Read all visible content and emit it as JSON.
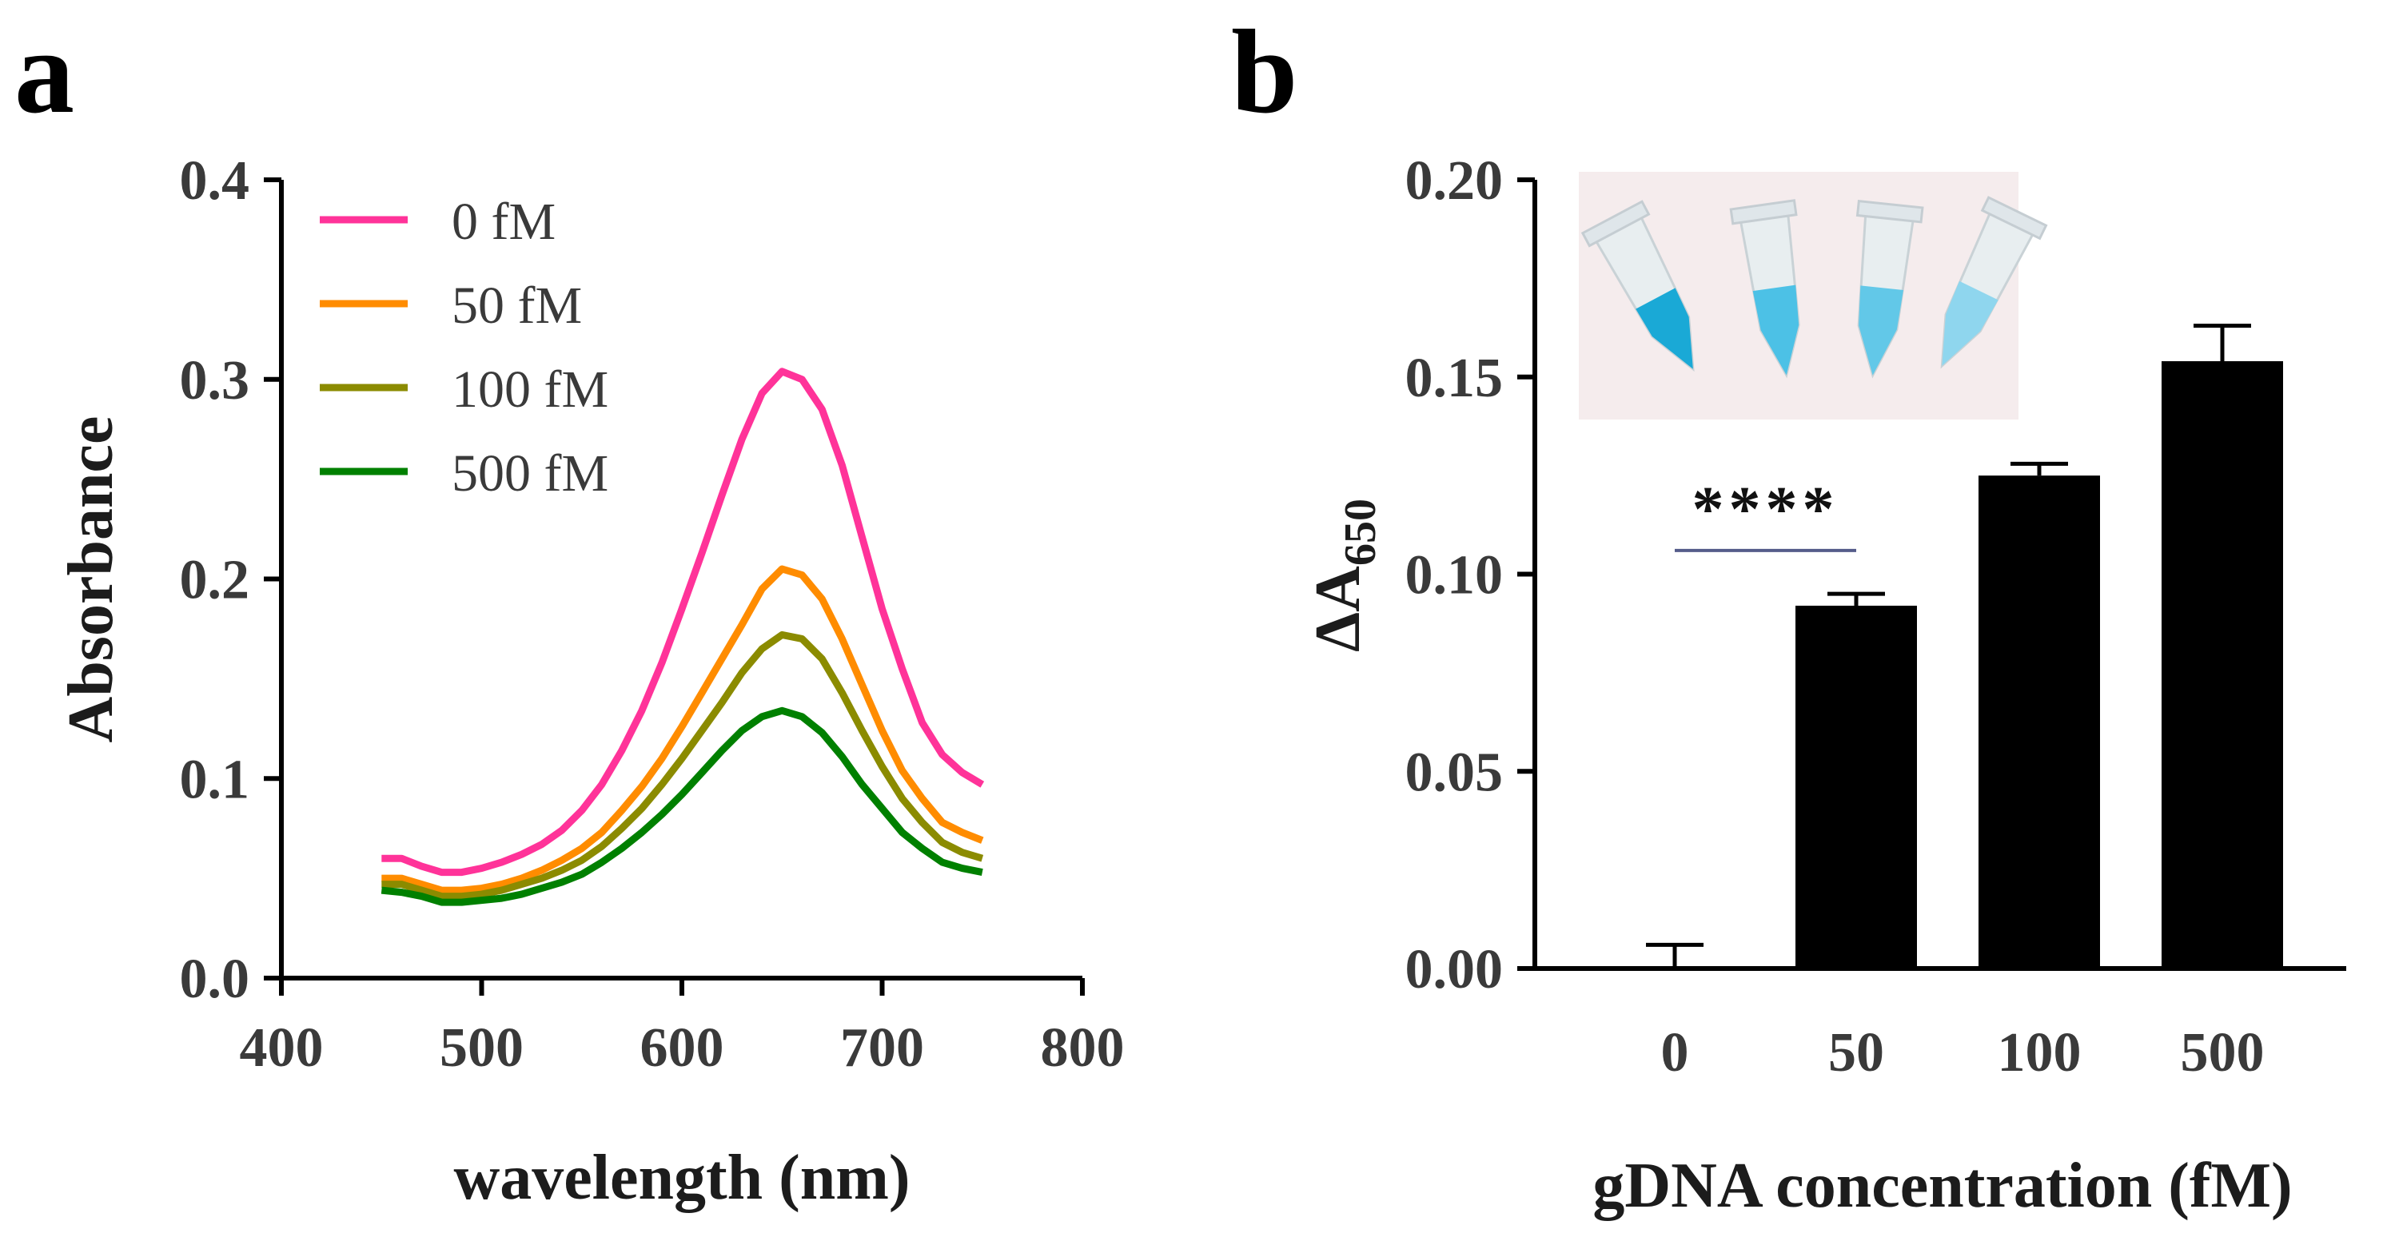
{
  "figure": {
    "panel_a_letter": "a",
    "panel_b_letter": "b"
  },
  "chart_data": [
    {
      "type": "line",
      "panel": "a",
      "xlabel": "wavelength (nm)",
      "ylabel": "Absorbance",
      "xlim": [
        400,
        800
      ],
      "ylim": [
        0.0,
        0.4
      ],
      "xticks": [
        400,
        500,
        600,
        700,
        800
      ],
      "yticks": [
        0.0,
        0.1,
        0.2,
        0.3,
        0.4
      ],
      "xtick_labels": [
        "400",
        "500",
        "600",
        "700",
        "800"
      ],
      "ytick_labels": [
        "0.0",
        "0.1",
        "0.2",
        "0.3",
        "0.4"
      ],
      "grid": false,
      "legend": "top-left",
      "x": [
        450,
        460,
        470,
        480,
        490,
        500,
        510,
        520,
        530,
        540,
        550,
        560,
        570,
        580,
        590,
        600,
        610,
        620,
        630,
        640,
        650,
        660,
        670,
        680,
        690,
        700,
        710,
        720,
        730,
        740,
        750
      ],
      "series": [
        {
          "name": "0 fM",
          "color": "#ff3399",
          "values": [
            0.06,
            0.06,
            0.056,
            0.053,
            0.053,
            0.055,
            0.058,
            0.062,
            0.067,
            0.074,
            0.084,
            0.097,
            0.114,
            0.134,
            0.158,
            0.185,
            0.213,
            0.242,
            0.27,
            0.293,
            0.304,
            0.3,
            0.285,
            0.257,
            0.221,
            0.185,
            0.155,
            0.128,
            0.112,
            0.103,
            0.097
          ]
        },
        {
          "name": "50 fM",
          "color": "#ff8c00",
          "values": [
            0.05,
            0.05,
            0.047,
            0.044,
            0.044,
            0.045,
            0.047,
            0.05,
            0.054,
            0.059,
            0.065,
            0.073,
            0.084,
            0.096,
            0.11,
            0.126,
            0.143,
            0.16,
            0.177,
            0.195,
            0.205,
            0.202,
            0.19,
            0.17,
            0.147,
            0.124,
            0.104,
            0.09,
            0.078,
            0.073,
            0.069
          ]
        },
        {
          "name": "100 fM",
          "color": "#8b8b00",
          "values": [
            0.047,
            0.047,
            0.044,
            0.041,
            0.041,
            0.042,
            0.044,
            0.047,
            0.05,
            0.054,
            0.059,
            0.066,
            0.075,
            0.085,
            0.097,
            0.11,
            0.124,
            0.138,
            0.153,
            0.165,
            0.172,
            0.17,
            0.16,
            0.143,
            0.124,
            0.106,
            0.09,
            0.078,
            0.068,
            0.063,
            0.06
          ]
        },
        {
          "name": "500 fM",
          "color": "#008000",
          "values": [
            0.044,
            0.043,
            0.041,
            0.038,
            0.038,
            0.039,
            0.04,
            0.042,
            0.045,
            0.048,
            0.052,
            0.058,
            0.065,
            0.073,
            0.082,
            0.092,
            0.103,
            0.114,
            0.124,
            0.131,
            0.134,
            0.131,
            0.123,
            0.111,
            0.097,
            0.085,
            0.073,
            0.065,
            0.058,
            0.055,
            0.053
          ]
        }
      ]
    },
    {
      "type": "bar",
      "panel": "b",
      "xlabel": "gDNA concentration (fM)",
      "ylabel_main": "ΔA",
      "ylabel_sub": "650",
      "ylim": [
        0.0,
        0.2
      ],
      "yticks": [
        0.0,
        0.05,
        0.1,
        0.15,
        0.2
      ],
      "ytick_labels": [
        "0.00",
        "0.05",
        "0.10",
        "0.15",
        "0.20"
      ],
      "grid": false,
      "bar_color": "#000000",
      "categories": [
        "0",
        "50",
        "100",
        "500"
      ],
      "values": [
        0.0,
        0.092,
        0.125,
        0.154
      ],
      "errors": [
        0.006,
        0.003,
        0.003,
        0.009
      ],
      "significance": {
        "label": "****",
        "from": "0",
        "to": "50",
        "y": 0.106
      },
      "inset": "photo of four tubes with blue solution, top-left of plot"
    }
  ]
}
